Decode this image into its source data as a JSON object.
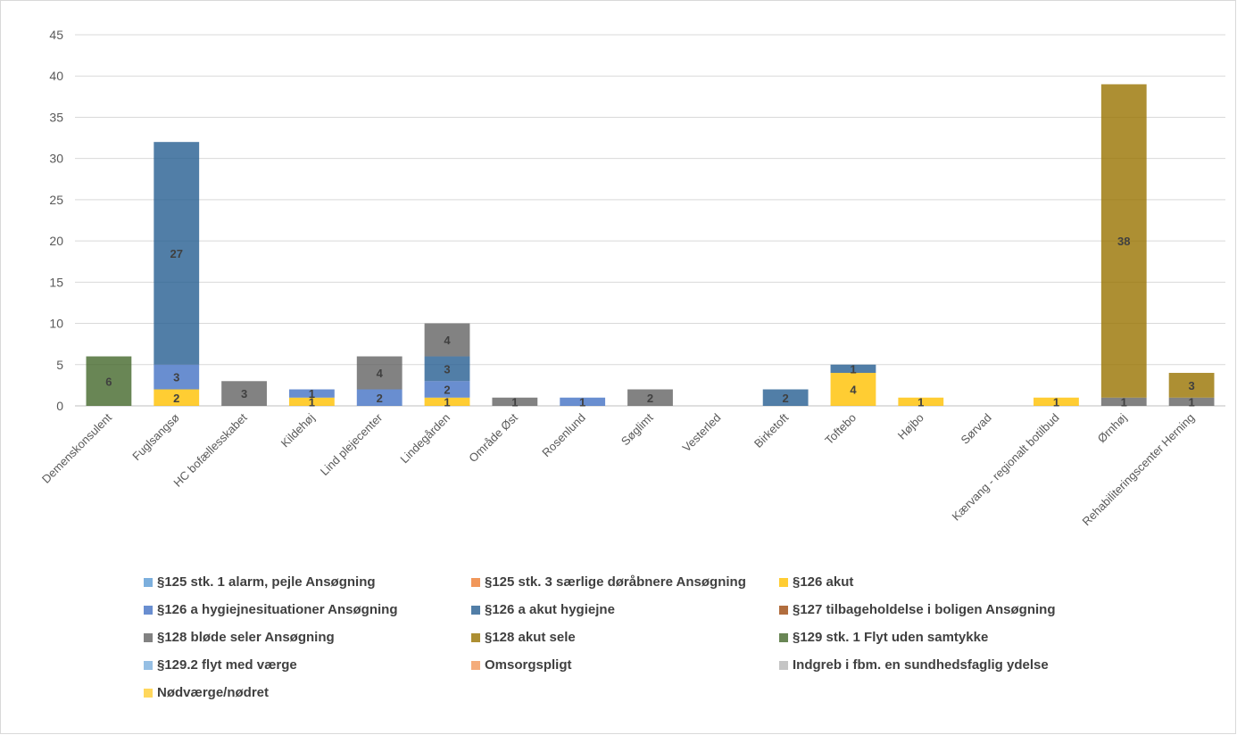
{
  "chart_data": {
    "type": "bar",
    "stacked": true,
    "ylim": [
      0,
      45
    ],
    "yticks": [
      "0",
      "5",
      "10",
      "15",
      "20",
      "25",
      "30",
      "35",
      "40",
      "45"
    ],
    "grid": "horizontal",
    "legend_position": "bottom",
    "categories": [
      "Demenskonsulent",
      "Fuglsangsø",
      "HC bofællesskabet",
      "Kildehøj",
      "Lind plejecenter",
      "Lindegården",
      "Område Øst",
      "Rosenlund",
      "Søglimt",
      "Vesterled",
      "Birketoft",
      "Toftebo",
      "Højbo",
      "Sørvad",
      "Kærvang - regionalt botilbud",
      "Ørnhøj",
      "Rehabiliteringscenter Herning"
    ],
    "series": [
      {
        "name": "§125 stk. 1 alarm, pejle Ansøgning",
        "color": "#5b9bd5",
        "values": [
          0,
          0,
          0,
          0,
          0,
          0,
          0,
          0,
          0,
          0,
          0,
          0,
          0,
          0,
          0,
          0,
          0
        ]
      },
      {
        "name": "§125 stk. 3 særlige døråbnere Ansøgning",
        "color": "#ed7d31",
        "values": [
          0,
          0,
          0,
          0,
          0,
          0,
          0,
          0,
          0,
          0,
          0,
          0,
          0,
          0,
          0,
          0,
          0
        ]
      },
      {
        "name": "§126 akut",
        "color": "#ffc000",
        "values": [
          0,
          2,
          0,
          1,
          0,
          1,
          0,
          0,
          0,
          0,
          0,
          4,
          1,
          0,
          1,
          0,
          0
        ]
      },
      {
        "name": "§126 a hygiejnesituationer Ansøgning",
        "color": "#4472c4",
        "values": [
          0,
          3,
          0,
          1,
          2,
          2,
          0,
          1,
          0,
          0,
          0,
          0,
          0,
          0,
          0,
          0,
          0
        ]
      },
      {
        "name": "§126 a akut hygiejne",
        "color": "#255e91",
        "values": [
          0,
          27,
          0,
          0,
          0,
          3,
          0,
          0,
          0,
          0,
          2,
          1,
          0,
          0,
          0,
          0,
          0
        ]
      },
      {
        "name": "§127 tilbageholdelse i boligen Ansøgning",
        "color": "#9e480e",
        "values": [
          0,
          0,
          0,
          0,
          0,
          0,
          0,
          0,
          0,
          0,
          0,
          0,
          0,
          0,
          0,
          0,
          0
        ]
      },
      {
        "name": "§128 bløde seler Ansøgning",
        "color": "#636363",
        "values": [
          0,
          0,
          3,
          0,
          4,
          4,
          1,
          0,
          2,
          0,
          0,
          0,
          0,
          0,
          0,
          1,
          1
        ]
      },
      {
        "name": "§128 akut sele",
        "color": "#997300",
        "values": [
          0,
          0,
          0,
          0,
          0,
          0,
          0,
          0,
          0,
          0,
          0,
          0,
          0,
          0,
          0,
          38,
          3
        ]
      },
      {
        "name": "§129 stk. 1 Flyt uden samtykke",
        "color": "#43682b",
        "values": [
          6,
          0,
          0,
          0,
          0,
          0,
          0,
          0,
          0,
          0,
          0,
          0,
          0,
          0,
          0,
          0,
          0
        ]
      },
      {
        "name": "§129.2 flyt med værge",
        "color": "#7cafdd",
        "values": [
          0,
          0,
          0,
          0,
          0,
          0,
          0,
          0,
          0,
          0,
          0,
          0,
          0,
          0,
          0,
          0,
          0
        ]
      },
      {
        "name": "Omsorgspligt",
        "color": "#f1975a",
        "values": [
          0,
          0,
          0,
          0,
          0,
          0,
          0,
          0,
          0,
          0,
          0,
          0,
          0,
          0,
          0,
          0,
          0
        ]
      },
      {
        "name": "Indgreb i fbm. en sundhedsfaglig ydelse",
        "color": "#b7b7b7",
        "values": [
          0,
          0,
          0,
          0,
          0,
          0,
          0,
          0,
          0,
          0,
          0,
          0,
          0,
          0,
          0,
          0,
          0
        ]
      },
      {
        "name": "Nødværge/nødret",
        "color": "#ffcd33",
        "values": [
          0,
          0,
          0,
          0,
          0,
          0,
          0,
          0,
          0,
          0,
          0,
          0,
          0,
          0,
          0,
          0,
          0
        ]
      }
    ]
  }
}
